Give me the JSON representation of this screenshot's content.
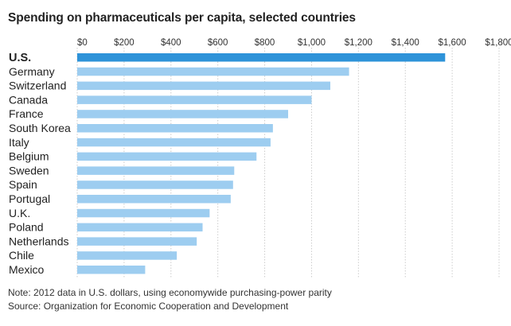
{
  "title": "Spending on pharmaceuticals per capita, selected countries",
  "note": "Note: 2012 data in U.S. dollars, using economywide purchasing-power parity",
  "source": "Source: Organization for Economic Cooperation and Development",
  "colors": {
    "highlight": "#2e93d9",
    "bar": "#9dcdf0",
    "grid": "#cccccc",
    "text": "#222222"
  },
  "chart_data": {
    "type": "bar",
    "orientation": "horizontal",
    "categories": [
      "U.S.",
      "Germany",
      "Switzerland",
      "Canada",
      "France",
      "South Korea",
      "Italy",
      "Belgium",
      "Sweden",
      "Spain",
      "Portugal",
      "U.K.",
      "Poland",
      "Netherlands",
      "Chile",
      "Mexico"
    ],
    "values": [
      1570,
      1160,
      1080,
      1000,
      900,
      835,
      825,
      765,
      670,
      665,
      655,
      565,
      535,
      510,
      425,
      290
    ],
    "highlight_category": "U.S.",
    "xlim": [
      0,
      1800
    ],
    "xticks": [
      0,
      200,
      400,
      600,
      800,
      1000,
      1200,
      1400,
      1600,
      1800
    ],
    "xtick_labels": [
      "$0",
      "$200",
      "$400",
      "$600",
      "$800",
      "$1,000",
      "$1,200",
      "$1,400",
      "$1,600",
      "$1,800"
    ],
    "grid": true,
    "xaxis_position": "top"
  }
}
